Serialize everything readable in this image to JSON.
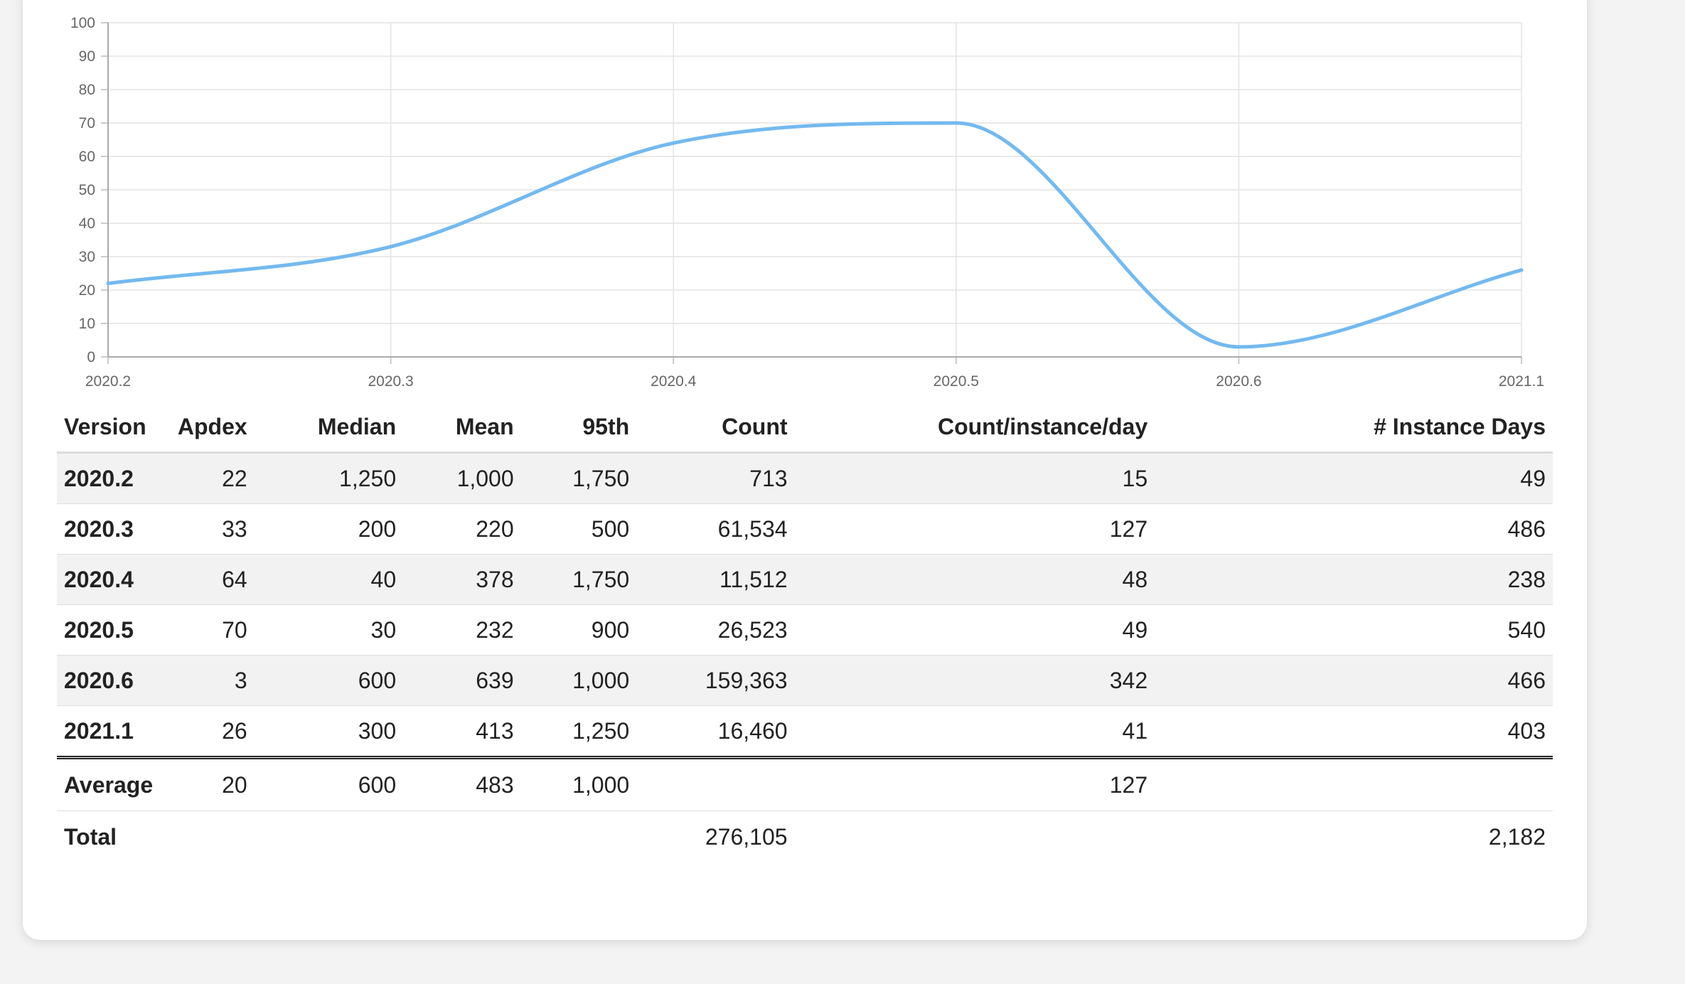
{
  "chart_data": {
    "type": "line",
    "x": [
      "2020.2",
      "2020.3",
      "2020.4",
      "2020.5",
      "2020.6",
      "2021.1"
    ],
    "series": [
      {
        "values": [
          22,
          33,
          64,
          70,
          3,
          26
        ],
        "color": "#74b9ef"
      }
    ],
    "ylim": [
      0,
      100
    ],
    "yticks": [
      0,
      10,
      20,
      30,
      40,
      50,
      60,
      70,
      80,
      90,
      100
    ],
    "grid": true,
    "title": "",
    "xlabel": "",
    "ylabel": ""
  },
  "table": {
    "columns": [
      "Version",
      "Apdex",
      "Median",
      "Mean",
      "95th",
      "Count",
      "Count/instance/day",
      "# Instance Days"
    ],
    "rows": [
      [
        "2020.2",
        "22",
        "1,250",
        "1,000",
        "1,750",
        "713",
        "15",
        "49"
      ],
      [
        "2020.3",
        "33",
        "200",
        "220",
        "500",
        "61,534",
        "127",
        "486"
      ],
      [
        "2020.4",
        "64",
        "40",
        "378",
        "1,750",
        "11,512",
        "48",
        "238"
      ],
      [
        "2020.5",
        "70",
        "30",
        "232",
        "900",
        "26,523",
        "49",
        "540"
      ],
      [
        "2020.6",
        "3",
        "600",
        "639",
        "1,000",
        "159,363",
        "342",
        "466"
      ],
      [
        "2021.1",
        "26",
        "300",
        "413",
        "1,250",
        "16,460",
        "41",
        "403"
      ]
    ],
    "footer": [
      [
        "Average",
        "20",
        "600",
        "483",
        "1,000",
        "",
        "127",
        ""
      ],
      [
        "Total",
        "",
        "",
        "",
        "",
        "276,105",
        "",
        "2,182"
      ]
    ]
  }
}
